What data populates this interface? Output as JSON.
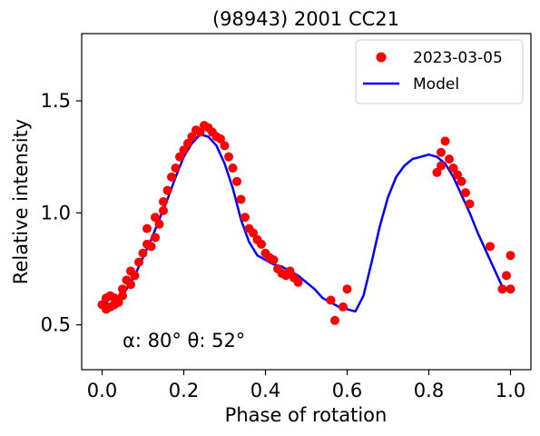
{
  "chart_data": {
    "type": "scatter",
    "title": "(98943) 2001 CC21",
    "xlabel": "Phase of rotation",
    "ylabel": "Relative intensity",
    "xlim": [
      -0.05,
      1.05
    ],
    "ylim": [
      0.3,
      1.8
    ],
    "xticks": [
      0.0,
      0.2,
      0.4,
      0.6,
      0.8,
      1.0
    ],
    "xtick_labels": [
      "0.0",
      "0.2",
      "0.4",
      "0.6",
      "0.8",
      "1.0"
    ],
    "yticks": [
      0.5,
      1.0,
      1.5
    ],
    "ytick_labels": [
      "0.5",
      "1.0",
      "1.5"
    ],
    "grid": false,
    "legend_position": "top-right",
    "annotation": "α: 80° θ: 52°",
    "series": [
      {
        "name": "2023-03-05",
        "kind": "scatter",
        "color": "#ff0000",
        "x": [
          0.0,
          0.01,
          0.01,
          0.02,
          0.02,
          0.03,
          0.03,
          0.04,
          0.05,
          0.05,
          0.06,
          0.07,
          0.07,
          0.08,
          0.09,
          0.1,
          0.11,
          0.11,
          0.12,
          0.13,
          0.13,
          0.14,
          0.15,
          0.15,
          0.16,
          0.17,
          0.18,
          0.19,
          0.2,
          0.21,
          0.22,
          0.23,
          0.24,
          0.25,
          0.26,
          0.27,
          0.28,
          0.29,
          0.3,
          0.31,
          0.32,
          0.33,
          0.34,
          0.35,
          0.36,
          0.37,
          0.38,
          0.39,
          0.4,
          0.41,
          0.42,
          0.43,
          0.44,
          0.45,
          0.46,
          0.47,
          0.48,
          0.56,
          0.57,
          0.59,
          0.6,
          0.82,
          0.83,
          0.83,
          0.84,
          0.85,
          0.86,
          0.87,
          0.88,
          0.89,
          0.9,
          0.95,
          0.98,
          0.99,
          1.0,
          1.0
        ],
        "y": [
          0.59,
          0.62,
          0.57,
          0.58,
          0.63,
          0.59,
          0.62,
          0.6,
          0.66,
          0.63,
          0.7,
          0.68,
          0.74,
          0.72,
          0.78,
          0.82,
          0.86,
          0.93,
          0.85,
          0.89,
          0.98,
          0.95,
          1.05,
          1.01,
          1.1,
          1.16,
          1.2,
          1.25,
          1.28,
          1.31,
          1.34,
          1.37,
          1.36,
          1.39,
          1.38,
          1.36,
          1.34,
          1.33,
          1.3,
          1.25,
          1.2,
          1.14,
          1.06,
          0.98,
          0.93,
          0.91,
          0.88,
          0.86,
          0.82,
          0.8,
          0.79,
          0.75,
          0.73,
          0.72,
          0.74,
          0.71,
          0.69,
          0.61,
          0.52,
          0.58,
          0.66,
          1.18,
          1.27,
          1.21,
          1.32,
          1.24,
          1.2,
          1.17,
          1.14,
          1.09,
          1.04,
          0.85,
          0.66,
          0.72,
          0.81,
          0.66
        ]
      },
      {
        "name": "Model",
        "kind": "line",
        "color": "#0000ff",
        "x": [
          0.0,
          0.02,
          0.04,
          0.06,
          0.08,
          0.1,
          0.12,
          0.14,
          0.16,
          0.18,
          0.2,
          0.22,
          0.24,
          0.26,
          0.28,
          0.3,
          0.32,
          0.34,
          0.36,
          0.38,
          0.4,
          0.42,
          0.44,
          0.46,
          0.48,
          0.5,
          0.52,
          0.54,
          0.56,
          0.58,
          0.6,
          0.62,
          0.64,
          0.66,
          0.68,
          0.7,
          0.72,
          0.74,
          0.76,
          0.78,
          0.8,
          0.82,
          0.84,
          0.86,
          0.88,
          0.9,
          0.92,
          0.94,
          0.96,
          0.98,
          1.0
        ],
        "y": [
          0.62,
          0.58,
          0.6,
          0.66,
          0.72,
          0.8,
          0.88,
          0.97,
          1.06,
          1.16,
          1.25,
          1.31,
          1.35,
          1.34,
          1.3,
          1.22,
          1.11,
          0.97,
          0.87,
          0.81,
          0.79,
          0.77,
          0.76,
          0.74,
          0.72,
          0.69,
          0.66,
          0.62,
          0.6,
          0.58,
          0.57,
          0.56,
          0.63,
          0.78,
          0.94,
          1.07,
          1.16,
          1.21,
          1.24,
          1.25,
          1.26,
          1.25,
          1.22,
          1.16,
          1.08,
          1.0,
          0.91,
          0.83,
          0.75,
          0.67,
          0.65
        ]
      }
    ]
  }
}
